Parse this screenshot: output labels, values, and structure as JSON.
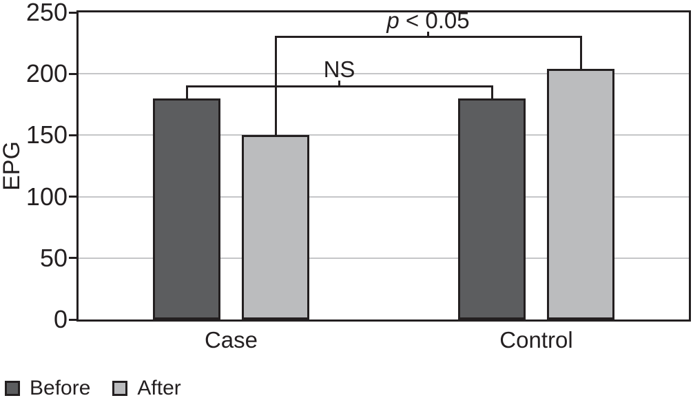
{
  "colors": {
    "ink": "#231f20",
    "grid": "#c5c6c8",
    "background": "#ffffff",
    "dark_series": "#5c5d5f",
    "light_series": "#bbbcbe"
  },
  "chart_data": {
    "type": "bar",
    "title": "",
    "ylabel": "EPG",
    "categories": [
      "Case",
      "Control"
    ],
    "series": [
      {
        "name": "Before",
        "color": "#5c5d5f",
        "values": [
          180,
          180
        ]
      },
      {
        "name": "After",
        "color": "#bbbcbe",
        "values": [
          150,
          204
        ]
      }
    ],
    "ylim": [
      0,
      250
    ],
    "yticks": [
      0,
      50,
      100,
      150,
      200,
      250
    ],
    "grid": true,
    "legend_position": "bottom-left",
    "annotations": [
      {
        "name": "significance-bracket-after",
        "label_italic": "p",
        "label_text": " < 0.05",
        "level": 230,
        "from": {
          "category": "Case",
          "series": "After"
        },
        "to": {
          "category": "Control",
          "series": "After"
        }
      },
      {
        "name": "significance-bracket-before",
        "label_italic": "",
        "label_text": "NS",
        "level": 190,
        "from": {
          "category": "Case",
          "series": "Before"
        },
        "to": {
          "category": "Control",
          "series": "Before"
        }
      }
    ]
  }
}
